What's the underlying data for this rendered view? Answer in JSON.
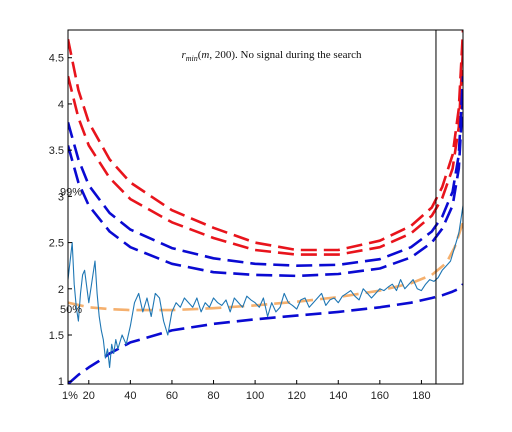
{
  "chart_data": {
    "type": "line",
    "title": {
      "r": "r",
      "sub": "min",
      "open": "(",
      "m": "m",
      "rest": ", 200). No signal during the search"
    },
    "xlabel": "",
    "ylabel": "",
    "xlim": [
      10,
      200
    ],
    "ylim": [
      0.97,
      4.8
    ],
    "xticks": [
      20,
      40,
      60,
      80,
      100,
      120,
      140,
      160,
      180
    ],
    "yticks": [
      1,
      1.5,
      2,
      2.5,
      3,
      3.5,
      4,
      4.5
    ],
    "ytick_labels": [
      "1",
      "1.5",
      "2",
      "2.5",
      "3",
      "3.5",
      "4",
      "4.5"
    ],
    "level_labels": [
      {
        "text": "99%",
        "y": 3.05
      },
      {
        "text": "50%",
        "y": 1.78
      },
      {
        "text": "1%",
        "y": 0.99
      }
    ],
    "vline_x": 187,
    "grid": false,
    "colors": {
      "red": "#e8141c",
      "blue": "#0a0ad2",
      "orange": "#f5b06e",
      "signal": "#1f77b4"
    },
    "series": [
      {
        "style": "red-dashed",
        "x": [
          10,
          15,
          20,
          30,
          40,
          60,
          80,
          100,
          120,
          140,
          160,
          175,
          185,
          190,
          195,
          198,
          200
        ],
        "y": [
          4.7,
          4.15,
          3.8,
          3.4,
          3.15,
          2.85,
          2.66,
          2.5,
          2.42,
          2.42,
          2.52,
          2.68,
          2.88,
          3.1,
          3.45,
          3.95,
          4.8
        ]
      },
      {
        "style": "red-dashed",
        "x": [
          10,
          15,
          20,
          30,
          40,
          60,
          80,
          100,
          120,
          140,
          160,
          175,
          185,
          190,
          195,
          198,
          200
        ],
        "y": [
          4.3,
          3.85,
          3.55,
          3.2,
          2.97,
          2.72,
          2.55,
          2.42,
          2.37,
          2.37,
          2.45,
          2.6,
          2.79,
          2.98,
          3.3,
          3.75,
          4.6
        ]
      },
      {
        "style": "blue-dashed",
        "x": [
          10,
          15,
          20,
          30,
          40,
          60,
          80,
          100,
          120,
          140,
          160,
          175,
          185,
          190,
          195,
          198,
          200
        ],
        "y": [
          3.8,
          3.4,
          3.12,
          2.82,
          2.64,
          2.44,
          2.33,
          2.27,
          2.25,
          2.26,
          2.32,
          2.45,
          2.62,
          2.78,
          3.05,
          3.45,
          4.3
        ]
      },
      {
        "style": "blue-dashed",
        "x": [
          10,
          15,
          20,
          30,
          40,
          60,
          80,
          100,
          120,
          140,
          160,
          175,
          185,
          190,
          195,
          198,
          200
        ],
        "y": [
          3.55,
          3.15,
          2.9,
          2.62,
          2.45,
          2.27,
          2.18,
          2.15,
          2.14,
          2.16,
          2.22,
          2.34,
          2.5,
          2.65,
          2.9,
          3.3,
          4.1
        ]
      },
      {
        "style": "orange-dashed",
        "x": [
          10,
          20,
          30,
          40,
          60,
          80,
          100,
          120,
          140,
          160,
          175,
          185,
          192,
          196,
          200
        ],
        "y": [
          1.85,
          1.8,
          1.78,
          1.77,
          1.77,
          1.79,
          1.82,
          1.86,
          1.91,
          1.98,
          2.06,
          2.15,
          2.28,
          2.45,
          2.72
        ]
      },
      {
        "style": "blue-dashed",
        "x": [
          10,
          15,
          20,
          25,
          30,
          40,
          60,
          80,
          100,
          120,
          140,
          160,
          175,
          185,
          190,
          195,
          198,
          200
        ],
        "y": [
          0.97,
          1.07,
          1.15,
          1.22,
          1.3,
          1.42,
          1.55,
          1.62,
          1.67,
          1.71,
          1.75,
          1.8,
          1.85,
          1.9,
          1.93,
          1.97,
          2.0,
          2.05
        ]
      },
      {
        "style": "signal",
        "x": [
          10,
          12,
          13,
          14,
          15,
          16,
          17,
          18,
          20,
          22,
          23,
          24,
          25,
          26,
          27,
          28,
          29,
          30,
          31,
          32,
          33,
          34,
          36,
          38,
          40,
          42,
          44,
          46,
          48,
          50,
          52,
          54,
          56,
          58,
          60,
          62,
          64,
          66,
          68,
          70,
          72,
          74,
          76,
          78,
          80,
          82,
          84,
          86,
          88,
          90,
          92,
          94,
          96,
          98,
          100,
          102,
          104,
          106,
          108,
          110,
          112,
          114,
          116,
          118,
          120,
          122,
          124,
          126,
          128,
          130,
          132,
          134,
          136,
          138,
          140,
          142,
          144,
          146,
          148,
          150,
          152,
          154,
          156,
          158,
          160,
          162,
          164,
          166,
          168,
          170,
          172,
          174,
          176,
          178,
          180,
          182,
          184,
          186,
          188,
          190,
          192,
          194,
          196,
          198,
          200
        ],
        "y": [
          2.1,
          2.5,
          2.05,
          1.8,
          1.65,
          1.95,
          2.15,
          2.2,
          1.85,
          2.15,
          2.3,
          1.95,
          1.7,
          1.55,
          1.45,
          1.25,
          1.35,
          1.15,
          1.4,
          1.3,
          1.45,
          1.35,
          1.5,
          1.4,
          1.6,
          1.85,
          1.95,
          1.75,
          1.9,
          1.7,
          1.95,
          1.9,
          1.65,
          1.5,
          1.75,
          1.85,
          1.8,
          1.9,
          1.85,
          1.8,
          1.9,
          1.75,
          1.85,
          1.8,
          1.9,
          1.85,
          1.82,
          1.88,
          1.75,
          1.9,
          1.85,
          1.8,
          1.92,
          1.88,
          1.85,
          1.8,
          1.9,
          1.7,
          1.85,
          1.75,
          1.8,
          1.95,
          1.85,
          1.82,
          1.78,
          1.88,
          1.9,
          1.8,
          1.85,
          1.9,
          1.95,
          1.82,
          1.88,
          1.9,
          1.85,
          1.92,
          1.95,
          1.98,
          1.92,
          1.88,
          2.0,
          1.95,
          1.9,
          1.95,
          2.0,
          1.98,
          2.02,
          2.05,
          1.98,
          2.1,
          2.0,
          2.05,
          2.1,
          2.0,
          1.98,
          2.05,
          2.1,
          2.08,
          2.12,
          2.2,
          2.25,
          2.3,
          2.45,
          2.6,
          2.9
        ]
      }
    ]
  }
}
